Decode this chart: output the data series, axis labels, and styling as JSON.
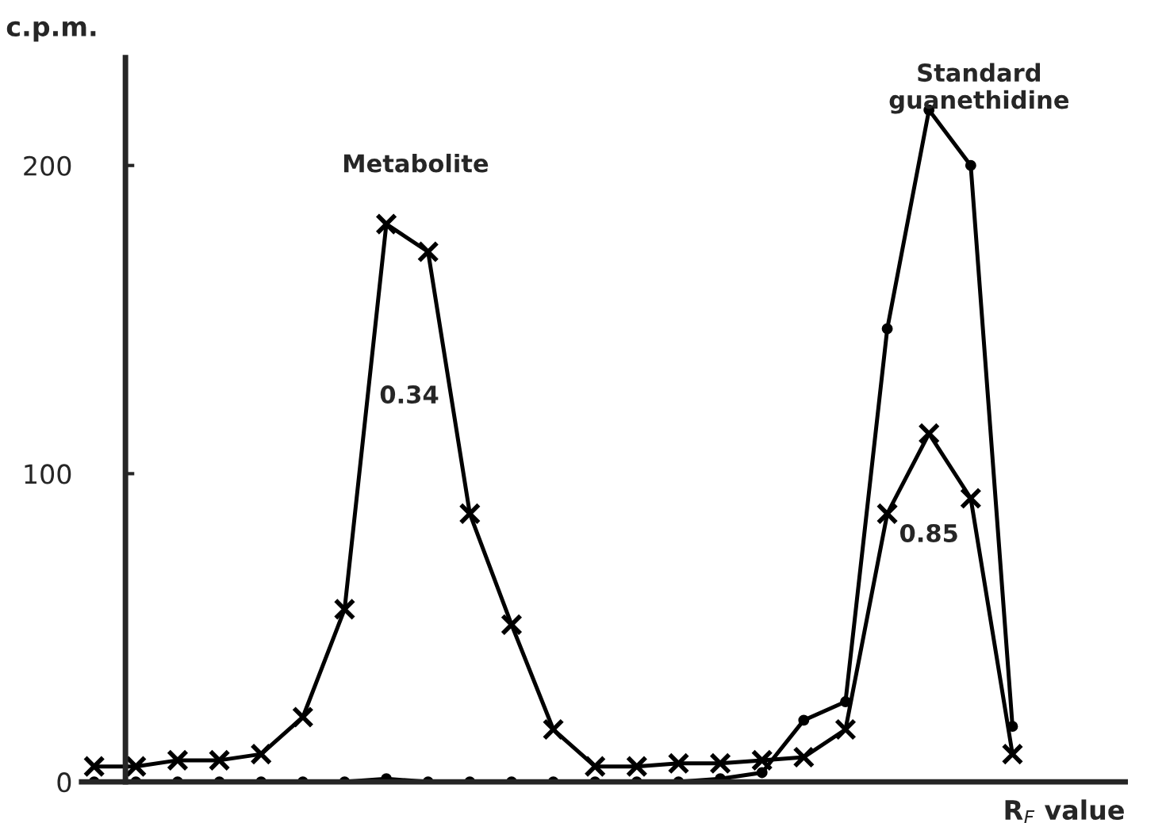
{
  "chart_data": {
    "type": "line",
    "xlabel": "R$_{F}$ value",
    "ylabel": "c.p.m.",
    "categories": [
      null,
      null,
      null,
      null,
      null,
      null,
      null,
      null,
      null,
      null,
      null,
      null,
      null,
      null,
      null,
      null,
      null,
      null,
      null,
      null,
      null,
      null,
      null
    ],
    "ylim": [
      0,
      235
    ],
    "yticks": [
      0,
      100,
      200
    ],
    "grid": false,
    "legend": false,
    "series": [
      {
        "color": "#000000",
        "marker": "cross",
        "values": [
          5,
          5,
          7,
          7,
          9,
          21,
          56,
          181,
          172,
          87,
          51,
          17,
          5,
          5,
          6,
          6,
          7,
          8,
          17,
          87,
          113,
          92,
          9
        ]
      },
      {
        "color": "#000000",
        "marker": "circle",
        "values": [
          0,
          0,
          0,
          0,
          0,
          0,
          0,
          1,
          0,
          0,
          0,
          0,
          0,
          0,
          0,
          1,
          3,
          20,
          26,
          147,
          218,
          200,
          18
        ]
      }
    ],
    "annotations": [
      "Metabolite",
      "0.34",
      "Standard\nguanethidine",
      "0.85"
    ]
  }
}
